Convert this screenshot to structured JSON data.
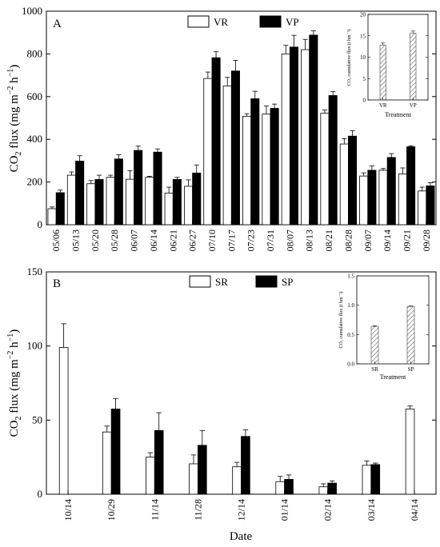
{
  "chart_data": [
    {
      "type": "bar",
      "panel": "A",
      "ylabel_main": "CO",
      "ylabel_sub": "2",
      "ylabel_rest": " flux (mg m",
      "ylabel_sup1": "−2",
      "ylabel_mid": " h",
      "ylabel_sup2": "−1",
      "ylabel_end": ")",
      "ylim": [
        0,
        1000
      ],
      "yticks": [
        "0",
        "200",
        "400",
        "600",
        "800",
        "1000"
      ],
      "ytick_values": [
        0,
        200,
        400,
        600,
        800,
        1000
      ],
      "categories": [
        "05/06",
        "05/13",
        "05/20",
        "05/28",
        "06/07",
        "06/14",
        "06/21",
        "06/27",
        "07/10",
        "07/17",
        "07/23",
        "07/31",
        "08/07",
        "08/13",
        "08/21",
        "08/28",
        "09/07",
        "09/14",
        "09/21",
        "09/28"
      ],
      "series": [
        {
          "name": "VR",
          "color": "#ffffff",
          "values": [
            75,
            232,
            192,
            222,
            213,
            222,
            148,
            180,
            685,
            650,
            508,
            518,
            800,
            820,
            522,
            378,
            228,
            255,
            238,
            158
          ],
          "errors": [
            8,
            15,
            15,
            10,
            40,
            5,
            28,
            30,
            30,
            40,
            12,
            38,
            40,
            48,
            15,
            25,
            15,
            8,
            28,
            18
          ]
        },
        {
          "name": "VP",
          "color": "#000000",
          "values": [
            150,
            298,
            212,
            308,
            348,
            340,
            212,
            242,
            782,
            720,
            590,
            545,
            832,
            888,
            605,
            415,
            255,
            315,
            365,
            182
          ],
          "errors": [
            12,
            25,
            20,
            20,
            20,
            15,
            10,
            38,
            28,
            50,
            35,
            20,
            55,
            20,
            18,
            25,
            20,
            18,
            5,
            15
          ]
        }
      ],
      "inset": {
        "ylabel": "CO₂ cumulative flux (t hm⁻²)",
        "xlabel": "Treatment",
        "categories": [
          "VR",
          "VP"
        ],
        "values": [
          12.8,
          15.6
        ],
        "errors": [
          0.5,
          0.5
        ],
        "ylim": [
          0,
          20
        ],
        "yticks": [
          "0",
          "5",
          "10",
          "15",
          "20"
        ],
        "ytick_values": [
          0,
          5,
          10,
          15,
          20
        ]
      }
    },
    {
      "type": "bar",
      "panel": "B",
      "ylabel_main": "CO",
      "ylabel_sub": "2",
      "ylabel_rest": " flux (mg m",
      "ylabel_sup1": "−2",
      "ylabel_mid": " h",
      "ylabel_sup2": "−1",
      "ylabel_end": ")",
      "xlabel": "Date",
      "ylim": [
        0,
        150
      ],
      "yticks": [
        "0",
        "50",
        "100",
        "150"
      ],
      "ytick_values": [
        0,
        50,
        100,
        150
      ],
      "categories": [
        "10/14",
        "10/29",
        "11/14",
        "11/28",
        "12/14",
        "01/14",
        "02/14",
        "03/14",
        "04/14"
      ],
      "series": [
        {
          "name": "SR",
          "color": "#ffffff",
          "values": [
            99,
            42,
            25,
            20.5,
            18.5,
            8.5,
            5,
            19.5,
            57.5
          ],
          "errors": [
            16,
            4,
            3,
            6,
            3,
            3.5,
            2,
            3,
            2
          ]
        },
        {
          "name": "SP",
          "color": "#000000",
          "values": [
            null,
            57.5,
            43,
            33,
            39,
            10,
            7.5,
            20,
            null
          ],
          "errors": [
            null,
            7,
            12,
            10,
            4.5,
            3,
            1.5,
            1,
            null
          ]
        }
      ],
      "inset": {
        "ylabel": "CO₂ cumulative flux (t hm⁻²)",
        "xlabel": "Treatment",
        "categories": [
          "SR",
          "SP"
        ],
        "values": [
          0.64,
          0.98
        ],
        "errors": [
          0.01,
          0.01
        ],
        "ylim": [
          0,
          1.5
        ],
        "yticks": [
          "0.0",
          "0.5",
          "1.0",
          "1.5"
        ],
        "ytick_values": [
          0,
          0.5,
          1.0,
          1.5
        ]
      }
    }
  ]
}
